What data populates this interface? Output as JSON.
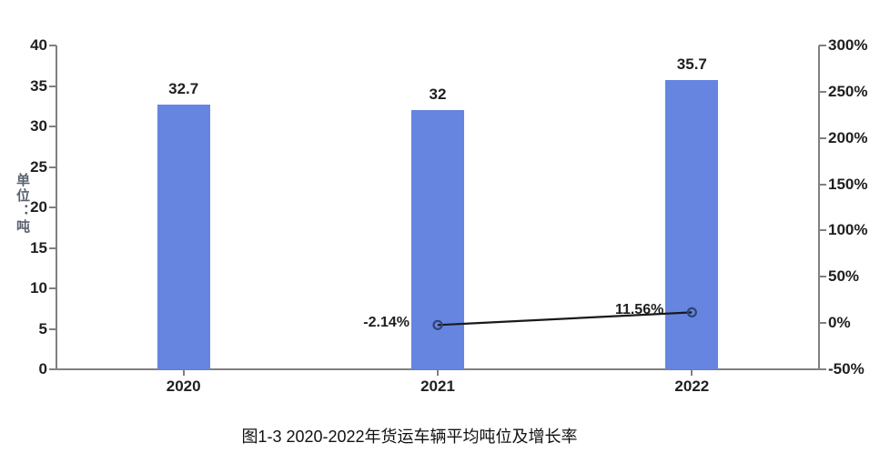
{
  "figure": {
    "caption": "图1-3 2020-2022年货运车辆平均吨位及增长率"
  },
  "chart_data": {
    "type": "bar",
    "subtype": "bar-line-combo",
    "categories": [
      "2020",
      "2021",
      "2022"
    ],
    "series": [
      {
        "name": "平均吨位",
        "type": "bar",
        "axis": "left",
        "values": [
          32.7,
          32,
          35.7
        ],
        "labels": [
          "32.7",
          "32",
          "35.7"
        ],
        "color": "#6585E0"
      },
      {
        "name": "增长率",
        "type": "line",
        "axis": "right",
        "values": [
          null,
          -2.14,
          11.56
        ],
        "labels": [
          null,
          "-2.14%",
          "11.56%"
        ],
        "line_color": "#1a1a1a",
        "marker_stroke": "#2F4577",
        "marker_fill": "none"
      }
    ],
    "left_axis": {
      "title": "单位：吨",
      "min": 0,
      "max": 40,
      "step": 5,
      "ticks": [
        "0",
        "5",
        "10",
        "15",
        "20",
        "25",
        "30",
        "35",
        "40"
      ]
    },
    "right_axis": {
      "title": "",
      "min": -50,
      "max": 300,
      "step": 50,
      "ticks": [
        "-50%",
        "0%",
        "50%",
        "100%",
        "150%",
        "200%",
        "250%",
        "300%"
      ]
    },
    "grid": false,
    "legend": null,
    "colors": {
      "bar": "#6585E0",
      "line": "#1a1a1a",
      "marker_stroke": "#2F4577",
      "axis": "#808080",
      "tick_text": "#1f1f1f",
      "y_title_text": "#5b6270"
    }
  }
}
